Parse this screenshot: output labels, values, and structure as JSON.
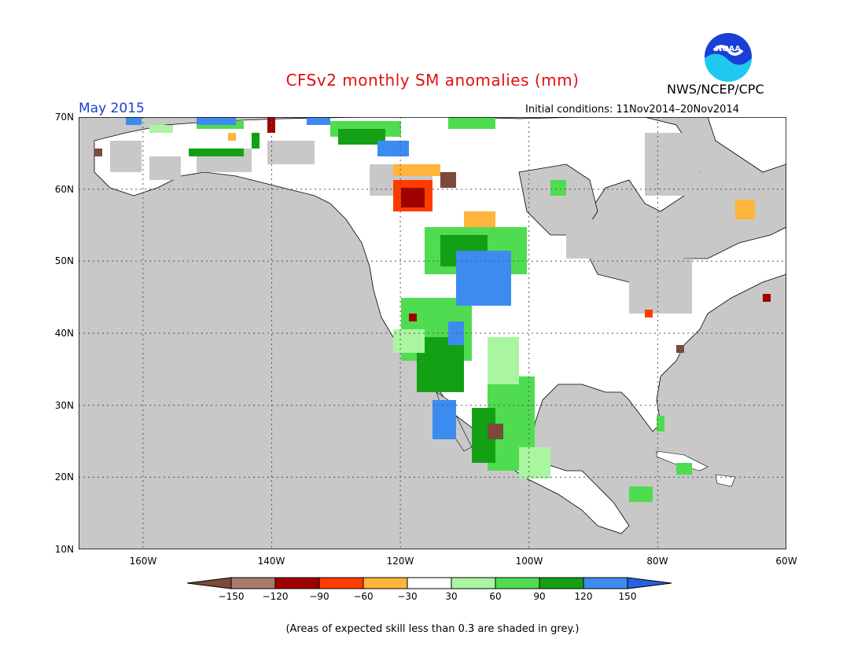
{
  "header": {
    "title": "CFSv2 monthly SM anomalies (mm)",
    "period": "May 2015",
    "initial_conditions": "Initial conditions: 11Nov2014–20Nov2014",
    "agency": "NWS/NCEP/CPC",
    "logo_text": "NOAA"
  },
  "map": {
    "lat_labels": [
      "70N",
      "60N",
      "50N",
      "40N",
      "30N",
      "20N",
      "10N"
    ],
    "lon_labels": [
      "160W",
      "140W",
      "120W",
      "100W",
      "80W",
      "60W"
    ],
    "lat_range": [
      10,
      70
    ],
    "lon_range": [
      -170,
      -60
    ],
    "ocean_color": "#c8c8c8",
    "land_color": "#ffffff"
  },
  "colorbar": {
    "labels": [
      "−150",
      "−120",
      "−90",
      "−60",
      "−30",
      "30",
      "60",
      "90",
      "120",
      "150"
    ],
    "colors": [
      "#7a4a3a",
      "#a87a6e",
      "#a00000",
      "#ff3c00",
      "#ffb43c",
      "#ffffff",
      "#aaf5a0",
      "#50dc50",
      "#14a014",
      "#3c8cf0",
      "#2860e0"
    ]
  },
  "footnote": "(Areas of expected skill less than 0.3 are shaded in grey.)"
}
